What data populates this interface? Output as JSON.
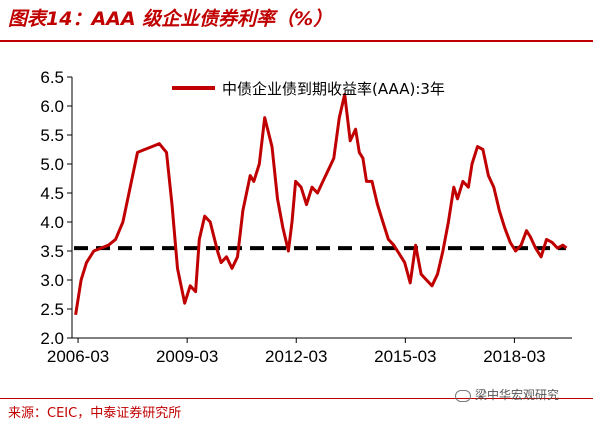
{
  "title": "图表14：AAA 级企业债券利率（%）",
  "source": "来源：CEIC，中泰证券研究所",
  "watermark": "梁中华宏观研究",
  "chart_data": {
    "type": "line",
    "title": "",
    "xlabel": "",
    "ylabel": "",
    "ylim": [
      2.0,
      6.5
    ],
    "yticks": [
      "2.0",
      "2.5",
      "3.0",
      "3.5",
      "4.0",
      "4.5",
      "5.0",
      "5.5",
      "6.0",
      "6.5"
    ],
    "xticks": [
      "2006-03",
      "2009-03",
      "2012-03",
      "2015-03",
      "2018-03"
    ],
    "xrange": [
      2006.0,
      2019.75
    ],
    "legend": "top-center",
    "grid": false,
    "reference_line": {
      "y": 3.55,
      "style": "dashed",
      "color": "#000000"
    },
    "series": [
      {
        "name": "中债企业债到期收益率(AAA):3年",
        "color": "#c00000",
        "x": [
          2006.1,
          2006.25,
          2006.4,
          2006.6,
          2006.8,
          2007.0,
          2007.2,
          2007.4,
          2007.6,
          2007.8,
          2008.0,
          2008.2,
          2008.4,
          2008.6,
          2008.75,
          2008.9,
          2009.0,
          2009.1,
          2009.25,
          2009.4,
          2009.5,
          2009.65,
          2009.8,
          2010.0,
          2010.1,
          2010.25,
          2010.4,
          2010.55,
          2010.7,
          2010.9,
          2011.0,
          2011.15,
          2011.3,
          2011.5,
          2011.65,
          2011.8,
          2011.95,
          2012.05,
          2012.15,
          2012.3,
          2012.45,
          2012.6,
          2012.75,
          2012.9,
          2013.05,
          2013.2,
          2013.35,
          2013.5,
          2013.65,
          2013.8,
          2013.9,
          2014.0,
          2014.1,
          2014.25,
          2014.4,
          2014.55,
          2014.7,
          2014.85,
          2015.0,
          2015.15,
          2015.3,
          2015.45,
          2015.6,
          2015.75,
          2015.9,
          2016.05,
          2016.2,
          2016.35,
          2016.5,
          2016.6,
          2016.75,
          2016.9,
          2017.0,
          2017.15,
          2017.3,
          2017.45,
          2017.6,
          2017.75,
          2017.9,
          2018.05,
          2018.2,
          2018.35,
          2018.5,
          2018.6,
          2018.75,
          2018.9,
          2019.05,
          2019.2,
          2019.35,
          2019.5,
          2019.6
        ],
        "values": [
          2.4,
          3.0,
          3.3,
          3.5,
          3.55,
          3.6,
          3.7,
          4.0,
          4.6,
          5.2,
          5.25,
          5.3,
          5.35,
          5.2,
          4.3,
          3.2,
          2.9,
          2.6,
          2.9,
          2.8,
          3.7,
          4.1,
          4.0,
          3.5,
          3.3,
          3.4,
          3.2,
          3.4,
          4.2,
          4.8,
          4.7,
          5.0,
          5.8,
          5.3,
          4.4,
          3.9,
          3.5,
          4.0,
          4.7,
          4.6,
          4.3,
          4.6,
          4.5,
          4.7,
          4.9,
          5.1,
          5.8,
          6.2,
          5.4,
          5.6,
          5.2,
          5.1,
          4.7,
          4.7,
          4.3,
          4.0,
          3.7,
          3.6,
          3.45,
          3.3,
          2.95,
          3.6,
          3.1,
          3.0,
          2.9,
          3.1,
          3.5,
          4.0,
          4.6,
          4.4,
          4.7,
          4.6,
          5.0,
          5.3,
          5.25,
          4.8,
          4.6,
          4.2,
          3.9,
          3.65,
          3.5,
          3.6,
          3.85,
          3.75,
          3.55,
          3.4,
          3.7,
          3.65,
          3.55,
          3.6,
          3.55
        ]
      }
    ]
  }
}
